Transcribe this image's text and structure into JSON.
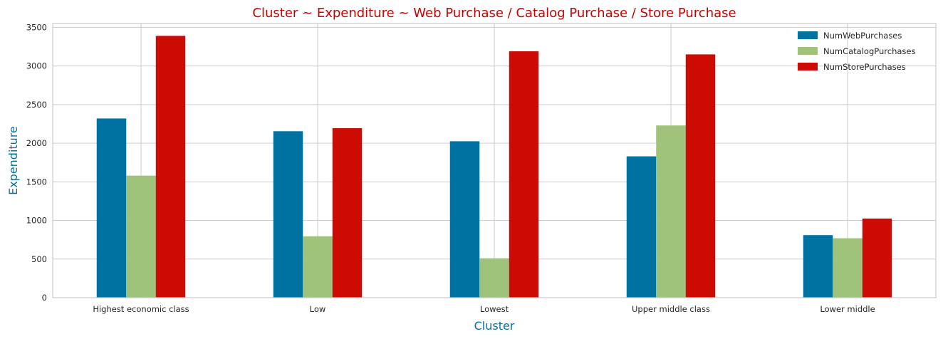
{
  "chart_data": {
    "type": "bar",
    "title": "Cluster ~ Expenditure ~ Web Purchase / Catalog Purchase / Store Purchase",
    "xlabel": "Cluster",
    "ylabel": "Expenditure",
    "categories": [
      "Highest economic class",
      "Low",
      "Lowest",
      "Upper middle class",
      "Lower middle"
    ],
    "series": [
      {
        "name": "NumWebPurchases",
        "color": "#0072a2",
        "values": [
          2320,
          2155,
          2025,
          1830,
          810
        ]
      },
      {
        "name": "NumCatalogPurchases",
        "color": "#9fc37a",
        "values": [
          1580,
          795,
          510,
          2230,
          770
        ]
      },
      {
        "name": "NumStorePurchases",
        "color": "#cb0b04",
        "values": [
          3390,
          2195,
          3190,
          3150,
          1025
        ]
      }
    ],
    "ylim": [
      0,
      3550
    ],
    "yticks": [
      0,
      500,
      1000,
      1500,
      2000,
      2500,
      3000,
      3500
    ],
    "grid": true,
    "legend_position": "top-right",
    "colors": {
      "title": "#cc0000",
      "axis_label": "#0072a2",
      "grid": "#cccccc",
      "frame": "#cccccc"
    }
  }
}
